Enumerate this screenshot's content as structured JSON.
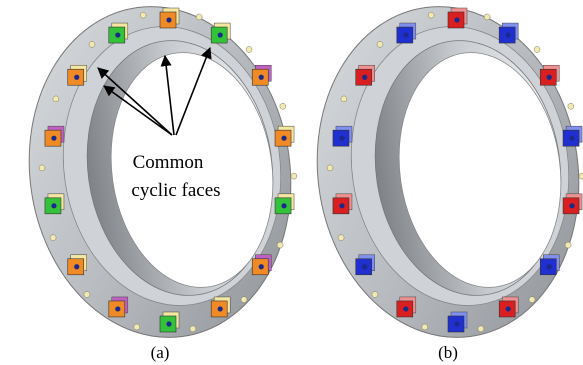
{
  "figure": {
    "panels": [
      {
        "label": "(a)",
        "annotation": [
          "Common",
          "cyclic faces"
        ]
      },
      {
        "label": "(b)"
      }
    ]
  }
}
